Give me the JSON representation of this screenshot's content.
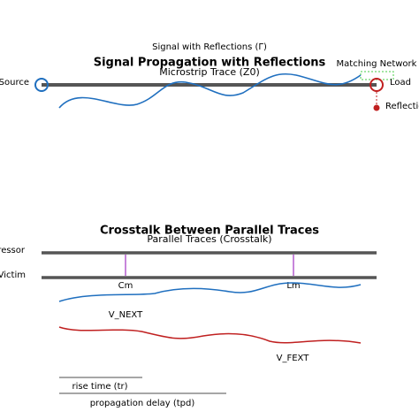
{
  "reflection": {
    "caption": "Signal with Reflections (Γ)",
    "title": "Signal Propagation with Reflections",
    "trace": "Microstrip Trace (Z0)",
    "matching": "Matching Network",
    "source": "Source",
    "load": "Load",
    "reflection": "Reflection"
  },
  "crosstalk": {
    "title": "Crosstalk Between Parallel Traces",
    "subtitle": "Parallel Traces (Crosstalk)",
    "aggressor": "Aggressor",
    "victim": "Victim",
    "cm": "Cm",
    "lm": "Lm",
    "next": "V_NEXT",
    "fext": "V_FEXT",
    "rise": "rise time (tr)",
    "delay": "propagation delay (tpd)"
  }
}
